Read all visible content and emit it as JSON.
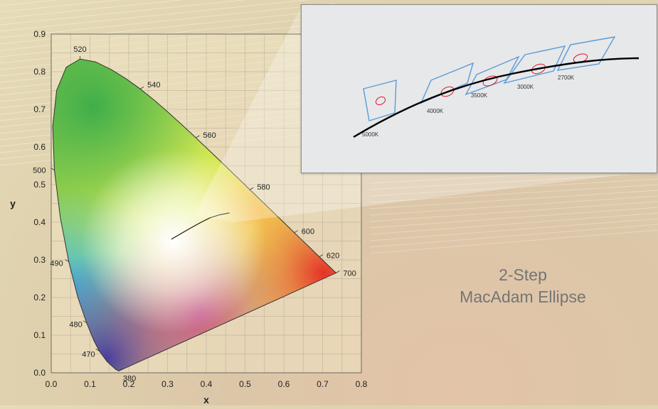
{
  "caption": {
    "line1": "2-Step",
    "line2": "MacAdam Ellipse"
  },
  "colors": {
    "ellipse": "#e0142a",
    "quad": "#5b9bd5",
    "curve": "#000000",
    "inset_bg": "#e7e8ea"
  },
  "chart_data": [
    {
      "type": "scatter",
      "xlabel": "x",
      "ylabel": "y",
      "xlim": [
        0.0,
        0.8
      ],
      "ylim": [
        0.0,
        0.9
      ],
      "x_ticks": [
        "0.0",
        "0.1",
        "0.2",
        "0.3",
        "0.4",
        "0.5",
        "0.6",
        "0.7",
        "0.8"
      ],
      "y_ticks": [
        "0.0",
        "0.1",
        "0.2",
        "0.3",
        "0.4",
        "0.5",
        "0.6",
        "0.7",
        "0.8",
        "0.9"
      ],
      "grid": true,
      "spectral_locus": [
        {
          "label": "380",
          "x": 0.1741,
          "y": 0.005
        },
        {
          "label": "470",
          "x": 0.1241,
          "y": 0.0578
        },
        {
          "label": "480",
          "x": 0.0913,
          "y": 0.1327
        },
        {
          "label": "490",
          "x": 0.0454,
          "y": 0.295
        },
        {
          "label": "500",
          "x": 0.0082,
          "y": 0.5384
        },
        {
          "label": "520",
          "x": 0.0743,
          "y": 0.8338
        },
        {
          "label": "540",
          "x": 0.2296,
          "y": 0.7543
        },
        {
          "label": "560",
          "x": 0.3731,
          "y": 0.6245
        },
        {
          "label": "580",
          "x": 0.5125,
          "y": 0.4866
        },
        {
          "label": "600",
          "x": 0.627,
          "y": 0.3725
        },
        {
          "label": "620",
          "x": 0.6915,
          "y": 0.3083
        },
        {
          "label": "700",
          "x": 0.7347,
          "y": 0.2653
        }
      ],
      "locus_curve": [
        [
          0.1741,
          0.005
        ],
        [
          0.1666,
          0.0089
        ],
        [
          0.144,
          0.0297
        ],
        [
          0.1241,
          0.0578
        ],
        [
          0.1096,
          0.0868
        ],
        [
          0.0913,
          0.1327
        ],
        [
          0.0687,
          0.2007
        ],
        [
          0.0454,
          0.295
        ],
        [
          0.0235,
          0.4127
        ],
        [
          0.0082,
          0.5384
        ],
        [
          0.0039,
          0.6548
        ],
        [
          0.0139,
          0.7502
        ],
        [
          0.0389,
          0.812
        ],
        [
          0.0743,
          0.8338
        ],
        [
          0.1142,
          0.8262
        ],
        [
          0.1547,
          0.8059
        ],
        [
          0.1929,
          0.7816
        ],
        [
          0.2296,
          0.7543
        ],
        [
          0.2658,
          0.7243
        ],
        [
          0.3016,
          0.6923
        ],
        [
          0.3373,
          0.6589
        ],
        [
          0.3731,
          0.6245
        ],
        [
          0.4087,
          0.5896
        ],
        [
          0.4441,
          0.5547
        ],
        [
          0.4788,
          0.5202
        ],
        [
          0.5125,
          0.4866
        ],
        [
          0.5448,
          0.4544
        ],
        [
          0.5752,
          0.4242
        ],
        [
          0.6029,
          0.3965
        ],
        [
          0.627,
          0.3725
        ],
        [
          0.6482,
          0.3514
        ],
        [
          0.6658,
          0.334
        ],
        [
          0.6801,
          0.3197
        ],
        [
          0.6915,
          0.3083
        ],
        [
          0.7006,
          0.2993
        ],
        [
          0.7079,
          0.292
        ],
        [
          0.714,
          0.2859
        ],
        [
          0.719,
          0.2809
        ],
        [
          0.723,
          0.277
        ],
        [
          0.726,
          0.274
        ],
        [
          0.7283,
          0.2717
        ],
        [
          0.73,
          0.27
        ],
        [
          0.7347,
          0.2653
        ]
      ],
      "planckian_locus": [
        [
          0.31,
          0.355
        ],
        [
          0.335,
          0.37
        ],
        [
          0.36,
          0.385
        ],
        [
          0.385,
          0.399
        ],
        [
          0.41,
          0.412
        ],
        [
          0.435,
          0.42
        ],
        [
          0.46,
          0.425
        ]
      ]
    },
    {
      "type": "line",
      "series": [],
      "cct_boxes": [
        {
          "label": "5000K"
        },
        {
          "label": "4000K"
        },
        {
          "label": "3500K"
        },
        {
          "label": "3000K"
        },
        {
          "label": "2700K"
        }
      ]
    }
  ]
}
